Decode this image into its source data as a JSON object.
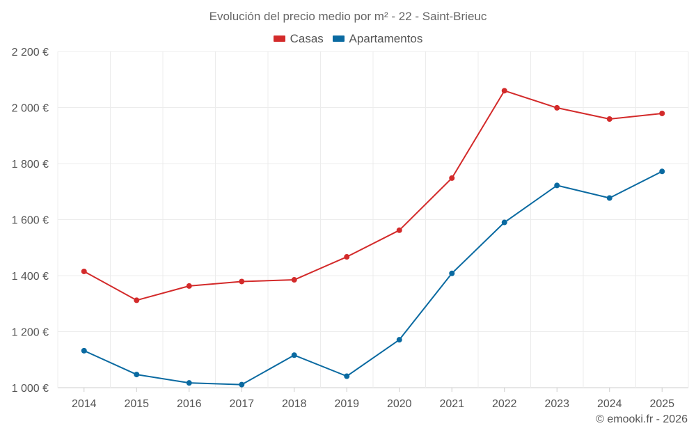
{
  "chart_data": {
    "type": "line",
    "title": "Evolución del precio medio por m² - 22 - Saint-Brieuc",
    "x": [
      "2014",
      "2015",
      "2016",
      "2017",
      "2018",
      "2019",
      "2020",
      "2021",
      "2022",
      "2023",
      "2024",
      "2025"
    ],
    "series": [
      {
        "name": "Casas",
        "color": "#d32a2a",
        "values": [
          1415,
          1312,
          1363,
          1379,
          1385,
          1467,
          1562,
          1748,
          2060,
          1999,
          1959,
          1979
        ]
      },
      {
        "name": "Apartamentos",
        "color": "#0a6aa1",
        "values": [
          1132,
          1047,
          1017,
          1011,
          1116,
          1041,
          1171,
          1408,
          1590,
          1722,
          1677,
          1772
        ]
      }
    ],
    "ylim": [
      1000,
      2200
    ],
    "yticks": [
      1000,
      1200,
      1400,
      1600,
      1800,
      2000,
      2200
    ],
    "ytick_labels": [
      "1 000 €",
      "1 200 €",
      "1 400 €",
      "1 600 €",
      "1 800 €",
      "2 000 €",
      "2 200 €"
    ],
    "grid": true,
    "legend": "top-center",
    "xlabel": "",
    "ylabel": ""
  },
  "legend_labels": {
    "casas": "Casas",
    "apartamentos": "Apartamentos"
  },
  "credit": "© emooki.fr - 2026"
}
